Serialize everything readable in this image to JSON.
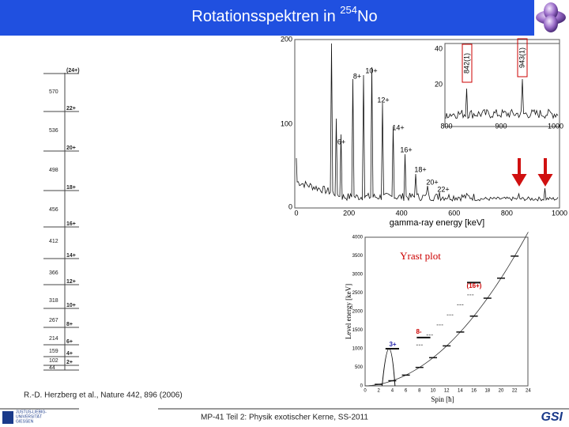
{
  "header": {
    "title": "Rotationsspektren in ",
    "title_superscript": "254",
    "title_suffix": "No"
  },
  "level_scheme": {
    "spins": [
      "(24+)",
      "22+",
      "20+",
      "18+",
      "16+",
      "14+",
      "12+",
      "10+",
      "8+",
      "6+",
      "4+",
      "2+"
    ],
    "transitions": [
      "570",
      "536",
      "498",
      "456",
      "412",
      "366",
      "318",
      "267",
      "214",
      "159",
      "102",
      "44"
    ]
  },
  "spectrum": {
    "yticks": [
      "200",
      "100",
      "0"
    ],
    "xticks": [
      "0",
      "200",
      "400",
      "600",
      "800",
      "1000"
    ],
    "x_label": "gamma-ray energy [keV]",
    "peak_labels": [
      "6+",
      "8+",
      "10+",
      "12+",
      "14+",
      "16+",
      "18+",
      "20+",
      "22+"
    ],
    "inset": {
      "yticks": [
        "40",
        "20"
      ],
      "xticks": [
        "800",
        "900",
        "1000"
      ],
      "labels": [
        "842(1)",
        "943(1)"
      ]
    }
  },
  "yrast": {
    "title": "Yrast plot",
    "y_label": "Level energy [keV]",
    "x_label": "Spin [ħ]",
    "yticks": [
      "4000",
      "3500",
      "3000",
      "2500",
      "2000",
      "1500",
      "1000",
      "500",
      "0"
    ],
    "xticks": [
      "0",
      "2",
      "4",
      "6",
      "8",
      "10",
      "12",
      "14",
      "16",
      "18",
      "20",
      "22",
      "24"
    ],
    "band_labels": [
      "(16+)",
      "8-",
      "3+"
    ]
  },
  "citation": "R.-D. Herzberg et al., Nature 442, 896 (2006)",
  "footer": "MP-41 Teil 2: Physik exotischer Kerne, SS-2011",
  "logos": {
    "left": [
      "JUSTUS-LIEBIG-",
      "UNIVERSITÄT",
      "GIESSEN"
    ],
    "right": "GSI"
  }
}
